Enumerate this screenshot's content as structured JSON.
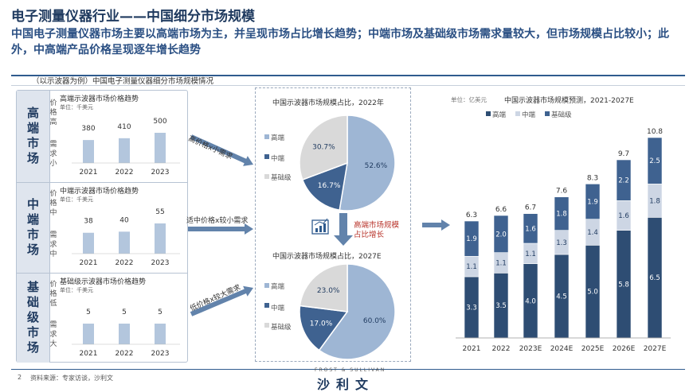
{
  "header": {
    "title": "电子测量仪器行业——中国细分市场规模",
    "subtitle": "中国电子测量仪器市场主要以高端市场为主，并呈现市场占比增长趋势；中端市场及基础级市场需求量较大，但市场规模占比较小；此外，中高端产品价格呈现逐年增长趋势",
    "section_label": "（以示波器为例）中国电子测量仪器细分市场规模情况"
  },
  "left_rows": [
    {
      "label": "高端市场",
      "chart_title": "高端示波器市场价格趋势",
      "unit": "单位：千美元",
      "top_label": "价格高",
      "bottom_label": "需求小",
      "arrow_text": "高价格x小需求",
      "categories": [
        "2021",
        "2022",
        "2023"
      ],
      "value_labels": [
        "380",
        "410",
        "500"
      ],
      "values": [
        380,
        410,
        500
      ]
    },
    {
      "label": "中端市场",
      "chart_title": "中端示波器市场价格趋势",
      "unit": "单位：千美元",
      "top_label": "价格中",
      "bottom_label": "需求中",
      "arrow_text": "适中价格x较小需求",
      "categories": [
        "2021",
        "2022",
        "2023"
      ],
      "value_labels": [
        "38",
        "40",
        "55"
      ],
      "values": [
        38,
        40,
        55
      ]
    },
    {
      "label": "基础级市场",
      "chart_title": "基础级示波器市场价格趋势",
      "unit": "单位：千美元",
      "top_label": "价格低",
      "bottom_label": "需求大",
      "arrow_text": "低价格x较大需求",
      "categories": [
        "2021",
        "2022",
        "2023"
      ],
      "value_labels": [
        "5",
        "5",
        "5"
      ],
      "values": [
        5,
        5,
        5
      ]
    }
  ],
  "pies": [
    {
      "title": "中国示波器市场规模占比，2022年",
      "legend": [
        "高端",
        "中端",
        "基础级"
      ],
      "labels": [
        "52.6%",
        "16.7%",
        "30.7%"
      ],
      "values": [
        52.6,
        16.7,
        30.7
      ]
    },
    {
      "title": "中国示波器市场规模占比，2027E",
      "legend": [
        "高端",
        "中端",
        "基础级"
      ],
      "labels": [
        "60.0%",
        "17.0%",
        "23.0%"
      ],
      "values": [
        60.0,
        17.0,
        23.0
      ]
    }
  ],
  "growth_note": "高端市场规模占比增长",
  "right_chart": {
    "unit": "单位：亿美元",
    "title": "中国示波器市场规模预测，2021-2027E",
    "legend": [
      "高端",
      "中端",
      "基础级"
    ]
  },
  "colors": {
    "high": "#2e4d73",
    "mid": "#cdd6e4",
    "base": "#3f6290",
    "pie_high": "#9eb6d4",
    "pie_mid": "#3f6290",
    "pie_base": "#d9d9d9",
    "mini_bar": "#b3c6dd",
    "arrow": "#6283ab"
  },
  "footer": {
    "page": "2",
    "source": "资料来源：专家访谈，沙利文",
    "brand_sub": "FROST & SULLIVAN",
    "brand": "沙利文"
  },
  "chart_data": [
    {
      "type": "bar",
      "title": "高端示波器市场价格趋势",
      "categories": [
        "2021",
        "2022",
        "2023"
      ],
      "values": [
        380,
        410,
        500
      ],
      "ylabel": "单位：千美元"
    },
    {
      "type": "bar",
      "title": "中端示波器市场价格趋势",
      "categories": [
        "2021",
        "2022",
        "2023"
      ],
      "values": [
        38,
        40,
        55
      ],
      "ylabel": "单位：千美元"
    },
    {
      "type": "bar",
      "title": "基础级示波器市场价格趋势",
      "categories": [
        "2021",
        "2022",
        "2023"
      ],
      "values": [
        5,
        5,
        5
      ],
      "ylabel": "单位：千美元"
    },
    {
      "type": "pie",
      "title": "中国示波器市场规模占比，2022年",
      "categories": [
        "高端",
        "中端",
        "基础级"
      ],
      "values": [
        52.6,
        16.7,
        30.7
      ]
    },
    {
      "type": "pie",
      "title": "中国示波器市场规模占比，2027E",
      "categories": [
        "高端",
        "中端",
        "基础级"
      ],
      "values": [
        60.0,
        17.0,
        23.0
      ]
    },
    {
      "type": "bar",
      "stacked": true,
      "title": "中国示波器市场规模预测，2021-2027E",
      "ylabel": "单位：亿美元",
      "categories": [
        "2021",
        "2022",
        "2023E",
        "2024E",
        "2025E",
        "2026E",
        "2027E"
      ],
      "totals": [
        6.3,
        6.6,
        6.7,
        7.6,
        8.3,
        9.7,
        10.8
      ],
      "totals_labels": [
        "6.3",
        "6.6",
        "6.7",
        "7.6",
        "8.3",
        "9.7",
        "10.8"
      ],
      "series": [
        {
          "name": "高端",
          "values": [
            3.3,
            3.5,
            4.0,
            4.5,
            5.0,
            5.8,
            6.5
          ],
          "labels": [
            "3.3",
            "3.5",
            "4.0",
            "4.5",
            "5.0",
            "5.8",
            "6.5"
          ]
        },
        {
          "name": "中端",
          "values": [
            1.1,
            1.1,
            1.1,
            1.3,
            1.4,
            1.6,
            1.8
          ],
          "labels": [
            "1.1",
            "1.1",
            "1.1",
            "1.3",
            "1.4",
            "1.6",
            "1.8"
          ]
        },
        {
          "name": "基础级",
          "values": [
            1.9,
            2.0,
            1.6,
            1.8,
            1.9,
            2.2,
            2.5
          ],
          "labels": [
            "1.9",
            "2.0",
            "1.6",
            "1.8",
            "1.9",
            "2.2",
            "2.5"
          ]
        }
      ],
      "legend_position": "top-left"
    }
  ]
}
